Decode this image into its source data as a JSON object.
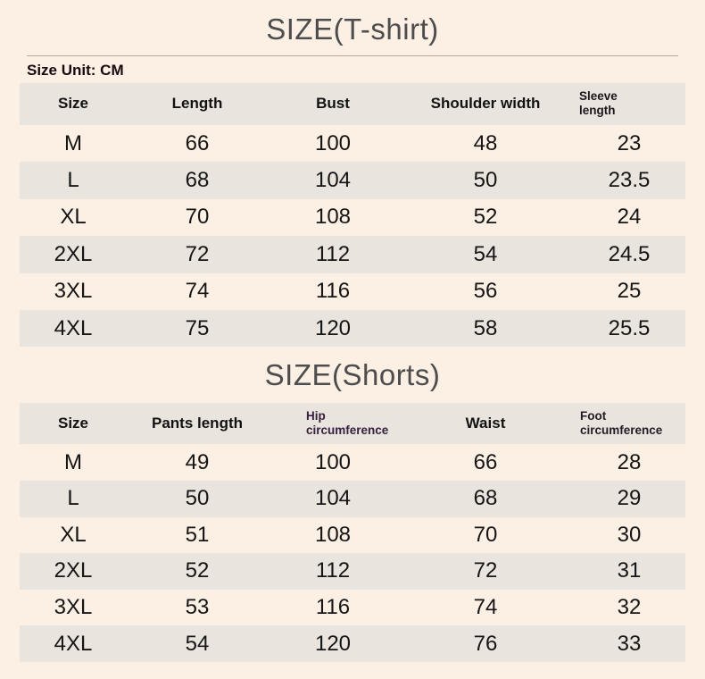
{
  "colors": {
    "background": "#fcefe4",
    "band_row": "#e9e4dd",
    "title": "#4d4d4d",
    "divider": "#b3a99f",
    "body_text": "#151515",
    "hip_header": "#352040"
  },
  "tshirt": {
    "title": "SIZE(T-shirt)",
    "unit_label": "Size Unit: CM",
    "headers": [
      "Size",
      "Length",
      "Bust",
      "Shoulder width",
      "Sleeve length"
    ],
    "rows": [
      [
        "M",
        "66",
        "100",
        "48",
        "23"
      ],
      [
        "L",
        "68",
        "104",
        "50",
        "23.5"
      ],
      [
        "XL",
        "70",
        "108",
        "52",
        "24"
      ],
      [
        "2XL",
        "72",
        "112",
        "54",
        "24.5"
      ],
      [
        "3XL",
        "74",
        "116",
        "56",
        "25"
      ],
      [
        "4XL",
        "75",
        "120",
        "58",
        "25.5"
      ]
    ]
  },
  "shorts": {
    "title": "SIZE(Shorts)",
    "headers": [
      "Size",
      "Pants length",
      "Hip circumference",
      "Waist",
      "Foot circumference"
    ],
    "rows": [
      [
        "M",
        "49",
        "100",
        "66",
        "28"
      ],
      [
        "L",
        "50",
        "104",
        "68",
        "29"
      ],
      [
        "XL",
        "51",
        "108",
        "70",
        "30"
      ],
      [
        "2XL",
        "52",
        "112",
        "72",
        "31"
      ],
      [
        "3XL",
        "53",
        "116",
        "74",
        "32"
      ],
      [
        "4XL",
        "54",
        "120",
        "76",
        "33"
      ]
    ]
  }
}
